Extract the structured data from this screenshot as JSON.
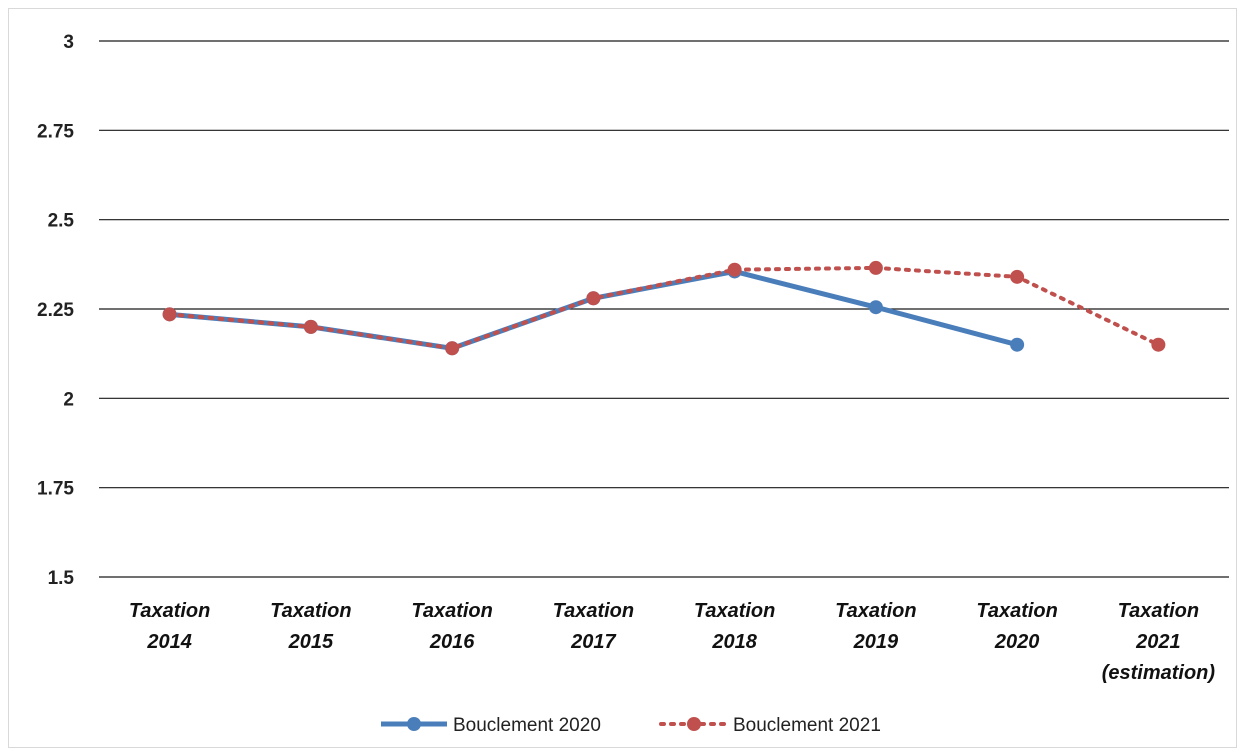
{
  "chart_data": {
    "type": "line",
    "categories": [
      [
        "Taxation",
        "2014"
      ],
      [
        "Taxation",
        "2015"
      ],
      [
        "Taxation",
        "2016"
      ],
      [
        "Taxation",
        "2017"
      ],
      [
        "Taxation",
        "2018"
      ],
      [
        "Taxation",
        "2019"
      ],
      [
        "Taxation",
        "2020"
      ],
      [
        "Taxation",
        "2021",
        "(estimation)"
      ]
    ],
    "ylim": [
      1.5,
      3
    ],
    "yticks": [
      "3",
      "2.75",
      "2.5",
      "2.25",
      "2",
      "1.75",
      "1.5"
    ],
    "ytick_values": [
      3,
      2.75,
      2.5,
      2.25,
      2,
      1.75,
      1.5
    ],
    "grid": true,
    "legend_position": "bottom",
    "series": [
      {
        "name": "Bouclement 2020",
        "color": "#4a7ebb",
        "style": "solid",
        "values": [
          2.235,
          2.2,
          2.14,
          2.28,
          2.355,
          2.255,
          2.15,
          null
        ]
      },
      {
        "name": "Bouclement 2021",
        "color": "#c0504d",
        "style": "dotted",
        "values": [
          2.235,
          2.2,
          2.14,
          2.28,
          2.36,
          2.365,
          2.34,
          2.15
        ]
      }
    ]
  }
}
